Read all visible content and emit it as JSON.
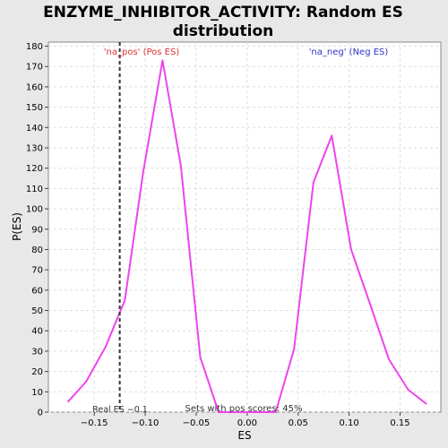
{
  "chart_data": {
    "type": "line",
    "title": "ENZYME_INHIBITOR_ACTIVITY: Random ES distribution",
    "title_lines": [
      "ENZYME_INHIBITOR_ACTIVITY: Random ES",
      "distribution"
    ],
    "xlabel": "ES",
    "ylabel": "P(ES)",
    "xlim": [
      -0.195,
      0.19
    ],
    "ylim": [
      0,
      182
    ],
    "x_ticks": [
      -0.15,
      -0.1,
      -0.05,
      0.0,
      0.05,
      0.1,
      0.15
    ],
    "x_tick_labels": [
      "−0.15",
      "−0.10",
      "−0.05",
      "0.00",
      "0.05",
      "0.10",
      "0.15"
    ],
    "y_ticks": [
      0,
      10,
      20,
      30,
      40,
      50,
      60,
      70,
      80,
      90,
      100,
      110,
      120,
      130,
      140,
      150,
      160,
      170,
      180
    ],
    "grid": true,
    "series": [
      {
        "color": "#ee44ee",
        "points": [
          [
            -0.176,
            5
          ],
          [
            -0.158,
            15
          ],
          [
            -0.139,
            32
          ],
          [
            -0.12,
            55
          ],
          [
            -0.102,
            118
          ],
          [
            -0.083,
            173
          ],
          [
            -0.065,
            121
          ],
          [
            -0.046,
            27
          ],
          [
            -0.028,
            0
          ],
          [
            -0.009,
            0
          ],
          [
            0.009,
            0
          ],
          [
            0.028,
            0
          ],
          [
            0.046,
            31
          ],
          [
            0.065,
            113
          ],
          [
            0.083,
            136
          ],
          [
            0.102,
            80
          ],
          [
            0.12,
            54
          ],
          [
            0.139,
            26
          ],
          [
            0.158,
            11
          ],
          [
            0.176,
            4
          ]
        ]
      }
    ],
    "real_es_line": {
      "x": -0.125,
      "color": "#333333"
    },
    "annotations": {
      "pos_label": "'na_pos' (Pos ES)",
      "pos_color": "#dd3333",
      "neg_label": "'na_neg' (Neg ES)",
      "neg_color": "#3333cc",
      "real_es": "Real ES −0.1",
      "sets_with_pos": "Sets with pos scores: 45%"
    }
  }
}
